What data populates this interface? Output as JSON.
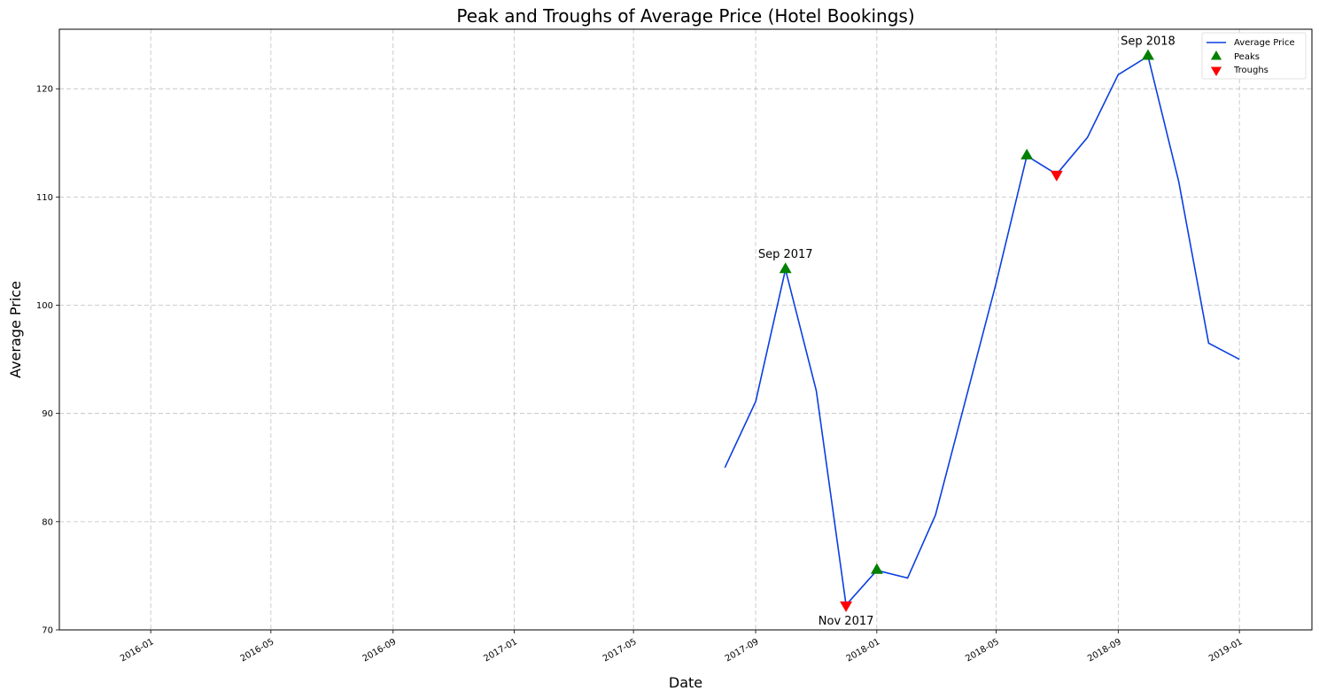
{
  "chart_data": {
    "type": "line",
    "title": "Peak and Troughs of Average Price (Hotel Bookings)",
    "xlabel": "Date",
    "ylabel": "Average Price",
    "xlim": [
      "2015-10-01",
      "2019-03-15"
    ],
    "ylim": [
      70,
      125.5
    ],
    "x_ticks": [
      "2016-01",
      "2016-05",
      "2016-09",
      "2017-01",
      "2017-05",
      "2017-09",
      "2018-01",
      "2018-05",
      "2018-09",
      "2019-01"
    ],
    "y_ticks": [
      70,
      80,
      90,
      100,
      110,
      120
    ],
    "grid": true,
    "legend_position": "top-right",
    "series": [
      {
        "name": "Average Price",
        "color": "#0b3fe0",
        "points": [
          {
            "x": "2017-08-01",
            "y": 85.0
          },
          {
            "x": "2017-09-01",
            "y": 91.1
          },
          {
            "x": "2017-10-01",
            "y": 103.3
          },
          {
            "x": "2017-11-01",
            "y": 92.1
          },
          {
            "x": "2017-12-01",
            "y": 72.3
          },
          {
            "x": "2018-01-01",
            "y": 75.5
          },
          {
            "x": "2018-02-01",
            "y": 74.8
          },
          {
            "x": "2018-03-01",
            "y": 80.6
          },
          {
            "x": "2018-04-01",
            "y": 91.5
          },
          {
            "x": "2018-05-01",
            "y": 102.0
          },
          {
            "x": "2018-06-01",
            "y": 113.8
          },
          {
            "x": "2018-07-01",
            "y": 112.1
          },
          {
            "x": "2018-08-01",
            "y": 115.5
          },
          {
            "x": "2018-09-01",
            "y": 121.3
          },
          {
            "x": "2018-10-01",
            "y": 123.0
          },
          {
            "x": "2018-11-01",
            "y": 111.4
          },
          {
            "x": "2018-12-01",
            "y": 96.5
          },
          {
            "x": "2019-01-01",
            "y": 95.0
          }
        ]
      }
    ],
    "peaks": {
      "name": "Peaks",
      "color": "#008000",
      "points": [
        {
          "x": "2017-10-01",
          "y": 103.3
        },
        {
          "x": "2018-01-01",
          "y": 75.5
        },
        {
          "x": "2018-06-01",
          "y": 113.8
        },
        {
          "x": "2018-10-01",
          "y": 123.0
        }
      ]
    },
    "troughs": {
      "name": "Troughs",
      "color": "#ff0000",
      "points": [
        {
          "x": "2017-12-01",
          "y": 72.3
        },
        {
          "x": "2018-07-01",
          "y": 112.1
        }
      ]
    },
    "annotations": [
      {
        "text": "Sep 2017",
        "x": "2017-10-01",
        "y": 103.3,
        "position": "above"
      },
      {
        "text": "Nov 2017",
        "x": "2017-12-01",
        "y": 72.3,
        "position": "below"
      },
      {
        "text": "Sep 2018",
        "x": "2018-10-01",
        "y": 123.0,
        "position": "above"
      }
    ]
  }
}
